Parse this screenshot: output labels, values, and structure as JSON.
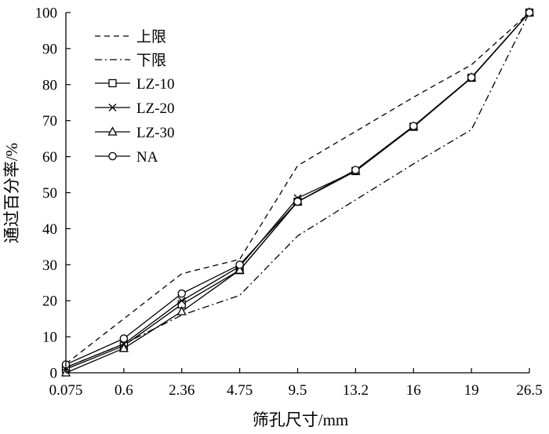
{
  "chart_data": {
    "type": "line",
    "title": "",
    "xlabel": "筛孔尺寸/mm",
    "ylabel": "通过百分率/%",
    "categories": [
      "0.075",
      "0.6",
      "2.36",
      "4.75",
      "9.5",
      "13.2",
      "16",
      "19",
      "26.5"
    ],
    "ylim": [
      0,
      100
    ],
    "yticks": [
      0,
      10,
      20,
      30,
      40,
      50,
      60,
      70,
      80,
      90,
      100
    ],
    "grid": false,
    "legend_position": "top-left",
    "series": [
      {
        "name": "上限",
        "style": "dashed",
        "marker": "none",
        "values": [
          2.5,
          15,
          27.5,
          31.5,
          57.5,
          67,
          76.5,
          85.5,
          100
        ]
      },
      {
        "name": "下限",
        "style": "dashdot",
        "marker": "none",
        "values": [
          1.5,
          8,
          16,
          21.5,
          38,
          48,
          58,
          67.5,
          100
        ]
      },
      {
        "name": "LZ-10",
        "style": "solid",
        "marker": "square",
        "values": [
          1,
          7.5,
          19,
          28.5,
          47.5,
          56,
          68.3,
          81.9,
          100
        ]
      },
      {
        "name": "LZ-20",
        "style": "solid",
        "marker": "x",
        "values": [
          1.5,
          8,
          20,
          29.5,
          48.5,
          56,
          68.3,
          81.9,
          100
        ]
      },
      {
        "name": "LZ-30",
        "style": "solid",
        "marker": "triangle",
        "values": [
          0,
          6.8,
          17,
          28.5,
          47.5,
          56,
          68.3,
          81.9,
          100
        ]
      },
      {
        "name": "NA",
        "style": "solid",
        "marker": "circle",
        "values": [
          2.3,
          9.5,
          22,
          30,
          47.5,
          56.3,
          68.5,
          82,
          100
        ]
      }
    ]
  }
}
